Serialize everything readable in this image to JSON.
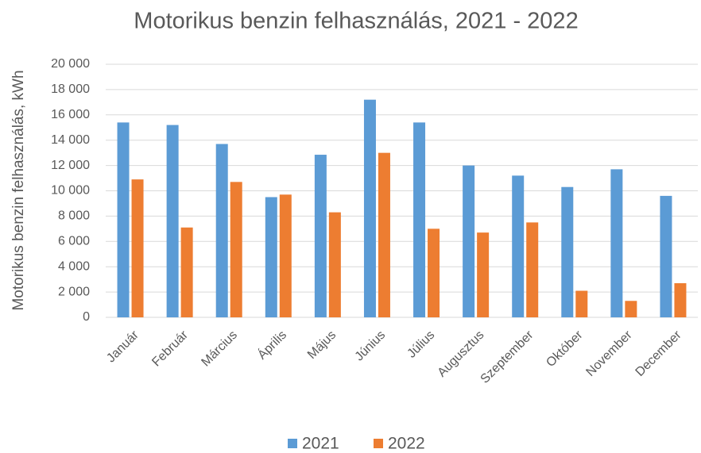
{
  "chart_data": {
    "type": "bar",
    "title": "Motorikus benzin felhasználás, 2021 - 2022",
    "y_label": "Motorikus benzin felhasználás, kWh",
    "categories": [
      "Január",
      "Február",
      "Március",
      "Április",
      "Május",
      "Június",
      "Július",
      "Augusztus",
      "Szeptember",
      "Október",
      "November",
      "December"
    ],
    "series": [
      {
        "name": "2021",
        "color": "#5b9bd5",
        "values": [
          15400,
          15200,
          13700,
          9500,
          12850,
          17200,
          15400,
          12000,
          11200,
          10300,
          11700,
          9600
        ]
      },
      {
        "name": "2022",
        "color": "#ed7d31",
        "values": [
          10900,
          7100,
          10700,
          9700,
          8300,
          13000,
          7000,
          6700,
          7500,
          2100,
          1300,
          2700
        ]
      }
    ],
    "ylim": [
      0,
      20000
    ],
    "yticks": [
      0,
      {
        "value": 2000,
        "label": "2 000"
      },
      {
        "value": 4000,
        "label": "4 000"
      },
      {
        "value": 6000,
        "label": "6 000"
      },
      {
        "value": 8000,
        "label": "8 000"
      },
      {
        "value": 10000,
        "label": "10 000"
      },
      {
        "value": 12000,
        "label": "12 000"
      },
      {
        "value": 14000,
        "label": "14 000"
      },
      {
        "value": 16000,
        "label": "16 000"
      },
      {
        "value": 18000,
        "label": "18 000"
      },
      {
        "value": 20000,
        "label": "20 000"
      }
    ],
    "grid": true,
    "legend": "bottom"
  }
}
